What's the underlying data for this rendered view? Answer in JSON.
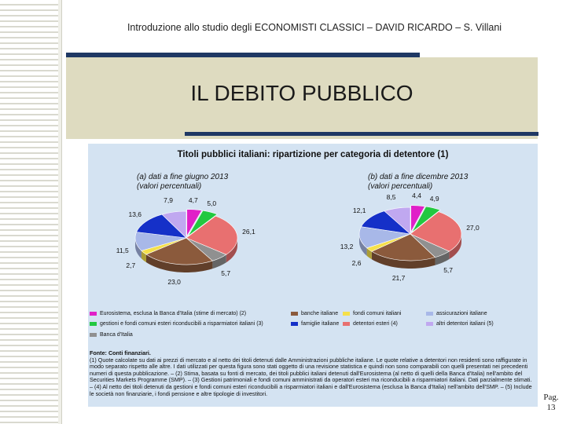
{
  "header": "Introduzione allo studio degli ECONOMISTI CLASSICI – DAVID RICARDO – S. Villani",
  "slide_title": "IL DEBITO PUBBLICO",
  "figure": {
    "title": "Titoli pubblici italiani: ripartizione per categoria di detentore (1)",
    "chart_a_subtitle": "(a) dati a fine giugno 2013",
    "chart_a_subtitle2": "(valori percentuali)",
    "chart_b_subtitle": "(b) dati a fine dicembre 2013",
    "chart_b_subtitle2": "(valori percentuali)",
    "legend": [
      {
        "label": "Eurosistema, esclusa la Banca d'Italia (stime di mercato) (2)",
        "color": "#e020c8"
      },
      {
        "label": "banche italiane",
        "color": "#8b5a3c"
      },
      {
        "label": "fondi comuni italiani",
        "color": "#f5e04a"
      },
      {
        "label": "assicurazioni italiane",
        "color": "#a8b8e8"
      },
      {
        "label": "gestioni e fondi comuni esteri riconducibili a risparmiatori italiani (3)",
        "color": "#22c840"
      },
      {
        "label": "famiglie italiane",
        "color": "#1530c8"
      },
      {
        "label": "detentori esteri (4)",
        "color": "#e87070"
      },
      {
        "label": "altri detentori italiani (5)",
        "color": "#c0a8f0"
      },
      {
        "label": "Banca d'Italia",
        "color": "#909090"
      }
    ],
    "notes": [
      "Fonte: Conti finanziari.",
      "(1) Quote calcolate su dati ai prezzi di mercato e al netto dei titoli detenuti dalle Amministrazioni pubbliche italiane. Le quote relative a detentori non residenti sono raffigurate in modo separato rispetto alle altre. I dati utilizzati per questa figura sono stati oggetto di una revisione statistica e quindi non sono comparabili con quelli presentati nei precedenti numeri di questa pubblicazione. – (2) Stima, basata su fonti di mercato, dei titoli pubblici italiani detenuti dall'Eurosistema (al netto di quelli della Banca d'Italia) nell'ambito del Securities Markets Programme (SMP). – (3) Gestioni patrimoniali e fondi comuni amministrati da operatori esteri ma riconducibili a risparmiatori italiani. Dati parzialmente stimati. – (4) Al netto dei titoli detenuti da gestioni e fondi comuni esteri riconducibili a risparmiatori italiani e dall'Eurosistema (esclusa la Banca d'Italia) nell'ambito dell'SMP. – (5) Include le società non finanziarie, i fondi pensione e altre tipologie di investitori."
    ]
  },
  "page_number_label": "Pag.",
  "page_number": "13",
  "chart_data": [
    {
      "type": "pie",
      "title": "(a) dati a fine giugno 2013 (valori percentuali)",
      "categories": [
        "Eurosistema, esclusa la Banca d'Italia",
        "gestioni e fondi comuni esteri",
        "detentori esteri",
        "Banca d'Italia",
        "banche italiane",
        "fondi comuni italiani",
        "assicurazioni italiane",
        "famiglie italiane",
        "altri detentori italiani"
      ],
      "values": [
        4.7,
        5.0,
        26.1,
        5.7,
        23.0,
        2.7,
        11.5,
        13.6,
        7.9
      ],
      "value_labels": [
        "4,7",
        "5,0",
        "26,1",
        "5,7",
        "23,0",
        "2,7",
        "11,5",
        "13,6",
        "7,9"
      ]
    },
    {
      "type": "pie",
      "title": "(b) dati a fine dicembre 2013 (valori percentuali)",
      "categories": [
        "Eurosistema, esclusa la Banca d'Italia",
        "gestioni e fondi comuni esteri",
        "detentori esteri",
        "Banca d'Italia",
        "banche italiane",
        "fondi comuni italiani",
        "assicurazioni italiane",
        "famiglie italiane",
        "altri detentori italiani"
      ],
      "values": [
        4.4,
        4.9,
        27.0,
        5.7,
        21.7,
        2.6,
        13.2,
        12.1,
        8.5
      ],
      "value_labels": [
        "4,4",
        "4,9",
        "27,0",
        "5,7",
        "21,7",
        "2,6",
        "13,2",
        "12,1",
        "8,5"
      ]
    }
  ]
}
